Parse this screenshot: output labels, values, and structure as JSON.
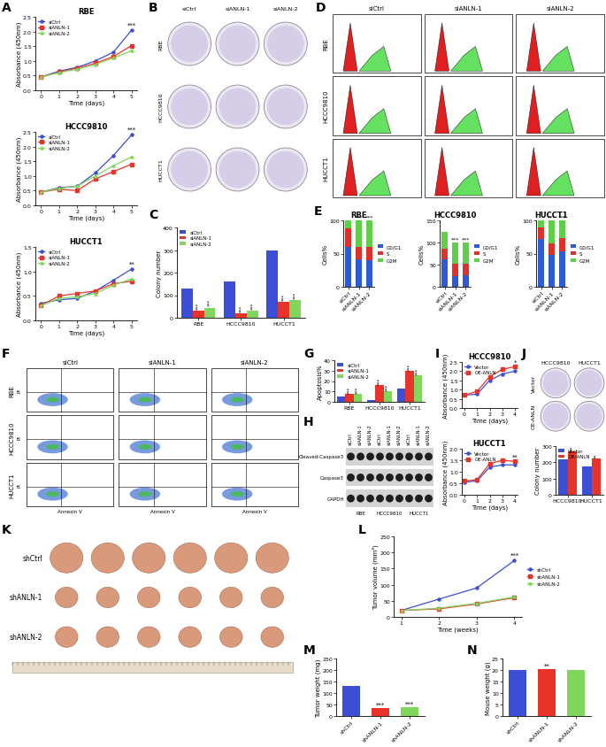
{
  "chart_data": [
    {
      "panel": "A",
      "type": "line",
      "title": "RBE",
      "x_label": "Time (days)",
      "y_label": "Absorbance (450nm)",
      "x": [
        0,
        1,
        2,
        3,
        4,
        5
      ],
      "xlim": [
        -0.3,
        5.3
      ],
      "xticks": [
        0,
        1,
        2,
        3,
        4,
        5
      ],
      "ylim": [
        0.0,
        2.5
      ],
      "yticks": [
        0.0,
        0.5,
        1.0,
        1.5,
        2.0,
        2.5
      ],
      "legend": "upper left",
      "series": [
        {
          "name": "siCtrl",
          "color": "#3a4fd6",
          "marker": "circle",
          "values": [
            0.45,
            0.65,
            0.78,
            1.0,
            1.3,
            2.05
          ]
        },
        {
          "name": "siANLN-1",
          "color": "#e8332b",
          "marker": "square",
          "values": [
            0.45,
            0.62,
            0.75,
            0.92,
            1.15,
            1.52
          ]
        },
        {
          "name": "siANLN-2",
          "color": "#7fd65a",
          "marker": "triangle",
          "values": [
            0.45,
            0.6,
            0.72,
            0.88,
            1.1,
            1.35
          ]
        }
      ],
      "annotations": [
        {
          "x": 5,
          "text": "***"
        }
      ]
    },
    {
      "type": "line",
      "title": "HCCC9810",
      "x_label": "Time (days)",
      "y_label": "Absorbance (450nm)",
      "x": [
        0,
        1,
        2,
        3,
        4,
        5
      ],
      "xlim": [
        -0.3,
        5.3
      ],
      "xticks": [
        0,
        1,
        2,
        3,
        4,
        5
      ],
      "ylim": [
        0.0,
        2.5
      ],
      "yticks": [
        0.0,
        0.5,
        1.0,
        1.5,
        2.0,
        2.5
      ],
      "legend": "upper left",
      "series": [
        {
          "name": "siCtrl",
          "color": "#3a4fd6",
          "marker": "circle",
          "values": [
            0.45,
            0.6,
            0.65,
            1.1,
            1.7,
            2.4
          ]
        },
        {
          "name": "siANLN-1",
          "color": "#e8332b",
          "marker": "square",
          "values": [
            0.45,
            0.55,
            0.5,
            0.9,
            1.15,
            1.4
          ]
        },
        {
          "name": "siANLN-2",
          "color": "#7fd65a",
          "marker": "triangle",
          "values": [
            0.45,
            0.58,
            0.65,
            1.0,
            1.35,
            1.65
          ]
        }
      ],
      "annotations": [
        {
          "x": 5,
          "text": "***"
        }
      ]
    },
    {
      "type": "line",
      "title": "HUCCT1",
      "x_label": "Time (days)",
      "y_label": "Absorbance (450nm)",
      "x": [
        0,
        1,
        2,
        3,
        4,
        5
      ],
      "xlim": [
        -0.3,
        5.3
      ],
      "xticks": [
        0,
        1,
        2,
        3,
        4,
        5
      ],
      "ylim": [
        0.0,
        1.5
      ],
      "yticks": [
        0.0,
        0.5,
        1.0,
        1.5
      ],
      "legend": "upper left",
      "series": [
        {
          "name": "siCtrl",
          "color": "#3a4fd6",
          "marker": "circle",
          "values": [
            0.35,
            0.42,
            0.45,
            0.6,
            0.82,
            1.05
          ]
        },
        {
          "name": "siANLN-1",
          "color": "#e8332b",
          "marker": "square",
          "values": [
            0.3,
            0.5,
            0.55,
            0.6,
            0.75,
            0.8
          ]
        },
        {
          "name": "siANLN-2",
          "color": "#7fd65a",
          "marker": "triangle",
          "values": [
            0.3,
            0.45,
            0.48,
            0.55,
            0.72,
            0.85
          ]
        }
      ],
      "annotations": [
        {
          "x": 5,
          "text": "**"
        }
      ]
    },
    {
      "panel": "C",
      "type": "bar",
      "y_label": "Colony number",
      "categories": [
        "RBE",
        "HCCC9810",
        "HUCCT1"
      ],
      "ylim": [
        0,
        400
      ],
      "yticks": [
        0,
        100,
        200,
        300,
        400
      ],
      "legend": "upper left",
      "series": [
        {
          "name": "siCtrl",
          "color": "#3a4fd6",
          "values": [
            130,
            160,
            300
          ]
        },
        {
          "name": "siANLN-1",
          "color": "#e8332b",
          "values": [
            30,
            20,
            70
          ],
          "annotations": [
            "***",
            "***",
            "***"
          ]
        },
        {
          "name": "siANLN-2",
          "color": "#7fd65a",
          "values": [
            45,
            30,
            80
          ],
          "annotations": [
            "***",
            "***",
            "***"
          ]
        }
      ]
    },
    {
      "panel": "E",
      "type": "bar",
      "stacked": true,
      "title": "RBE",
      "y_label": "Cells%",
      "categories": [
        "siCtrl",
        "siANLN-1",
        "siANLN-2"
      ],
      "ylim": [
        0,
        100
      ],
      "yticks": [
        0,
        50,
        100
      ],
      "legend": "right",
      "series": [
        {
          "name": "G0/G1",
          "color": "#2e5bd3",
          "values": [
            60,
            42,
            40
          ]
        },
        {
          "name": "S",
          "color": "#e0302a",
          "values": [
            28,
            18,
            20
          ]
        },
        {
          "name": "G2M",
          "color": "#5fcf4a",
          "values": [
            12,
            40,
            40
          ]
        }
      ],
      "annotations": [
        null,
        "***",
        "***"
      ]
    },
    {
      "type": "bar",
      "stacked": true,
      "title": "HCCC9810",
      "y_label": "Cells%",
      "categories": [
        "siCtrl",
        "siANLN-1",
        "siANLN-2"
      ],
      "ylim": [
        0,
        150
      ],
      "yticks": [
        0,
        50,
        100,
        150
      ],
      "legend": "right",
      "series": [
        {
          "name": "G0/G1",
          "color": "#2e5bd3",
          "values": [
            62,
            25,
            27
          ]
        },
        {
          "name": "S",
          "color": "#e0302a",
          "values": [
            25,
            28,
            26
          ]
        },
        {
          "name": "G2M",
          "color": "#5fcf4a",
          "values": [
            38,
            47,
            47
          ]
        }
      ],
      "annotations": [
        null,
        "***",
        "***"
      ]
    },
    {
      "type": "bar",
      "stacked": true,
      "title": "HUCCT1",
      "y_label": "Cells%",
      "categories": [
        "siCtrl",
        "siANLN-1",
        "siANLN-2"
      ],
      "ylim": [
        0,
        100
      ],
      "yticks": [
        0,
        50,
        100
      ],
      "legend": "right",
      "series": [
        {
          "name": "G0/G1",
          "color": "#2e5bd3",
          "values": [
            72,
            48,
            53
          ]
        },
        {
          "name": "S",
          "color": "#e0302a",
          "values": [
            18,
            17,
            20
          ]
        },
        {
          "name": "G2M",
          "color": "#5fcf4a",
          "values": [
            10,
            35,
            27
          ]
        }
      ],
      "annotations": [
        null,
        "***",
        "***"
      ]
    },
    {
      "panel": "G",
      "type": "bar",
      "y_label": "Apoptosis%",
      "categories": [
        "RBE",
        "HCCC9810",
        "HUCCT1"
      ],
      "ylim": [
        0,
        40
      ],
      "yticks": [
        0,
        10,
        20,
        30,
        40
      ],
      "legend": "upper left",
      "series": [
        {
          "name": "siCtrl",
          "color": "#3a4fd6",
          "values": [
            5,
            2,
            13
          ]
        },
        {
          "name": "siANLN-1",
          "color": "#e8332b",
          "values": [
            8,
            16.5,
            30
          ],
          "annotations": [
            "***",
            "***",
            "***"
          ]
        },
        {
          "name": "siANLN-2",
          "color": "#7fd65a",
          "values": [
            7.5,
            10.5,
            25.5
          ],
          "annotations": [
            "***",
            "***",
            "***"
          ]
        }
      ]
    },
    {
      "panel": "I",
      "type": "line",
      "title": "HCCC9810",
      "x_label": "Time (days)",
      "y_label": "Absorbance (450nm)",
      "x": [
        0,
        1,
        2,
        3,
        4
      ],
      "xlim": [
        -0.2,
        4.2
      ],
      "xticks": [
        0,
        1,
        2,
        3,
        4
      ],
      "ylim": [
        0.0,
        2.5
      ],
      "yticks": [
        0.0,
        0.5,
        1.0,
        1.5,
        2.0,
        2.5
      ],
      "legend": "upper left",
      "series": [
        {
          "name": "Vector",
          "color": "#3a4fd6",
          "marker": "circle",
          "values": [
            0.7,
            0.75,
            1.5,
            1.85,
            2.0
          ]
        },
        {
          "name": "OE-ANLN",
          "color": "#e8332b",
          "marker": "square",
          "values": [
            0.7,
            0.9,
            1.7,
            2.1,
            2.25
          ]
        }
      ],
      "annotations": [
        {
          "x": 4,
          "text": "*"
        }
      ]
    },
    {
      "type": "line",
      "title": "HUCCT1",
      "x_label": "Time (days)",
      "y_label": "Absorbance (450nm)",
      "x": [
        0,
        1,
        2,
        3,
        4
      ],
      "xlim": [
        -0.2,
        4.2
      ],
      "xticks": [
        0,
        1,
        2,
        3,
        4
      ],
      "ylim": [
        0.0,
        2.0
      ],
      "yticks": [
        0.0,
        0.5,
        1.0,
        1.5,
        2.0
      ],
      "legend": "upper left",
      "series": [
        {
          "name": "Vector",
          "color": "#3a4fd6",
          "marker": "circle",
          "values": [
            0.55,
            0.6,
            1.2,
            1.3,
            1.3
          ]
        },
        {
          "name": "OE-ANLN",
          "color": "#e8332b",
          "marker": "square",
          "values": [
            0.6,
            0.65,
            1.35,
            1.5,
            1.45
          ]
        }
      ],
      "annotations": [
        {
          "x": 4,
          "text": "**"
        }
      ]
    },
    {
      "type": "bar",
      "y_label": "Colony number",
      "categories": [
        "HCCC9810",
        "HUCCT1"
      ],
      "ylim": [
        0,
        300
      ],
      "yticks": [
        0,
        100,
        200,
        300
      ],
      "legend": "upper left",
      "series": [
        {
          "name": "Vector",
          "color": "#3a4fd6",
          "values": [
            220,
            175
          ]
        },
        {
          "name": "OE-ANLN",
          "color": "#e8332b",
          "values": [
            270,
            225
          ],
          "annotations": [
            "**",
            "**"
          ]
        }
      ]
    },
    {
      "panel": "L",
      "type": "line",
      "x_label": "Time (weeks)",
      "y_label": "Tumor volume (mm³)",
      "x": [
        1,
        2,
        3,
        4
      ],
      "xlim": [
        0.8,
        4.2
      ],
      "xticks": [
        1,
        2,
        3,
        4
      ],
      "ylim": [
        0,
        250
      ],
      "yticks": [
        0,
        50,
        100,
        150,
        200,
        250
      ],
      "legend": "right",
      "series": [
        {
          "name": "shCtrl",
          "color": "#3a4fd6",
          "marker": "circle",
          "values": [
            20,
            55,
            90,
            175
          ]
        },
        {
          "name": "shANLN-1",
          "color": "#e8332b",
          "marker": "square",
          "values": [
            20,
            25,
            40,
            60
          ]
        },
        {
          "name": "shANLN-2",
          "color": "#7fd65a",
          "marker": "triangle",
          "values": [
            20,
            27,
            42,
            62
          ]
        }
      ],
      "annotations": [
        {
          "x": 4,
          "text": "***"
        }
      ]
    },
    {
      "panel": "M",
      "type": "bar",
      "y_label": "Tumor weight (mg)",
      "categories": [
        "shCtrl",
        "shANLN-1",
        "shANLN-2"
      ],
      "values": [
        130,
        35,
        40
      ],
      "colors": [
        "#3a4fd6",
        "#e8332b",
        "#7fd65a"
      ],
      "ylim": [
        0,
        250
      ],
      "yticks": [
        0,
        50,
        100,
        150,
        200,
        250
      ],
      "annotations": [
        null,
        "***",
        "***"
      ]
    },
    {
      "panel": "N",
      "type": "bar",
      "y_label": "Mouse weight (g)",
      "categories": [
        "shCtrl",
        "shANLN-1",
        "shANLN-2"
      ],
      "values": [
        20,
        20.5,
        20
      ],
      "colors": [
        "#3a4fd6",
        "#e8332b",
        "#7fd65a"
      ],
      "ylim": [
        0,
        25
      ],
      "yticks": [
        0,
        5,
        10,
        15,
        20,
        25
      ],
      "annotations": [
        null,
        "**",
        null
      ]
    }
  ],
  "images": [
    {
      "panel": "B",
      "kind": "dishes",
      "columns": [
        "siCtrl",
        "siANLN-1",
        "siANLN-2"
      ],
      "rows": [
        "RBE",
        "HCCC9810",
        "HUCCT1"
      ]
    },
    {
      "panel": "D",
      "kind": "histograms",
      "columns": [
        "siCtrl",
        "siANLN-1",
        "siANLN-2"
      ],
      "rows": [
        "RBE",
        "HCCC9810",
        "HUCCT1"
      ]
    },
    {
      "panel": "F",
      "kind": "flow",
      "columns": [
        "siCtrl",
        "siANLN-1",
        "siANLN-2"
      ],
      "rows": [
        "RBE",
        "HCCC9810",
        "HUCCT1"
      ],
      "x_label": "Annexin V",
      "y_label": "PI"
    },
    {
      "panel": "H",
      "kind": "blot",
      "lanes": [
        "siCtrl",
        "siANLN-1",
        "siANLN-2",
        "siCtrl",
        "siANLN-1",
        "siANLN-2",
        "siCtrl",
        "siANLN-1",
        "siANLN-2"
      ],
      "groups": [
        "RBE",
        "HCCC9810",
        "HUCCT1"
      ],
      "rows": [
        "Cleaved-Caspase3",
        "Caspase3",
        "GAPDH"
      ]
    },
    {
      "panel": "J",
      "kind": "dishes",
      "columns": [
        "HCCC9810",
        "HUCCT1"
      ],
      "rows": [
        "Vector",
        "OE-ANLN"
      ]
    },
    {
      "panel": "K",
      "kind": "tumors",
      "rows": [
        "shCtrl",
        "shANLN-1",
        "shANLN-2"
      ],
      "count": 6
    }
  ]
}
